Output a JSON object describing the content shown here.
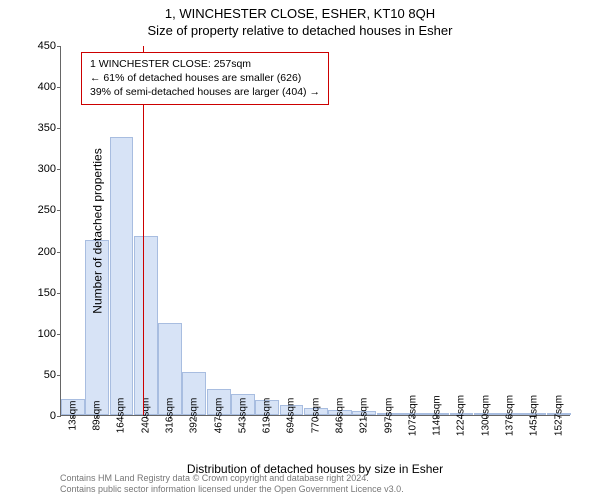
{
  "title_line1": "1, WINCHESTER CLOSE, ESHER, KT10 8QH",
  "title_line2": "Size of property relative to detached houses in Esher",
  "chart": {
    "type": "histogram",
    "y_label": "Number of detached properties",
    "x_label": "Distribution of detached houses by size in Esher",
    "ylim": [
      0,
      450
    ],
    "y_ticks": [
      0,
      50,
      100,
      150,
      200,
      250,
      300,
      350,
      400,
      450
    ],
    "x_ticks": [
      "13sqm",
      "89sqm",
      "164sqm",
      "240sqm",
      "316sqm",
      "392sqm",
      "467sqm",
      "543sqm",
      "619sqm",
      "694sqm",
      "770sqm",
      "846sqm",
      "921sqm",
      "997sqm",
      "1073sqm",
      "1149sqm",
      "1224sqm",
      "1300sqm",
      "1376sqm",
      "1451sqm",
      "1527sqm"
    ],
    "x_min": 13,
    "x_max": 1527,
    "bar_color": "#d7e3f6",
    "bar_border_color": "#a8bde0",
    "background_color": "#ffffff",
    "axis_color": "#666666",
    "bars": [
      {
        "x": 13,
        "count": 20
      },
      {
        "x": 89,
        "count": 213
      },
      {
        "x": 164,
        "count": 338
      },
      {
        "x": 240,
        "count": 218
      },
      {
        "x": 316,
        "count": 112
      },
      {
        "x": 392,
        "count": 52
      },
      {
        "x": 467,
        "count": 32
      },
      {
        "x": 543,
        "count": 25
      },
      {
        "x": 619,
        "count": 18
      },
      {
        "x": 694,
        "count": 12
      },
      {
        "x": 770,
        "count": 8
      },
      {
        "x": 846,
        "count": 6
      },
      {
        "x": 921,
        "count": 5
      },
      {
        "x": 997,
        "count": 3
      },
      {
        "x": 1073,
        "count": 2
      },
      {
        "x": 1149,
        "count": 2
      },
      {
        "x": 1224,
        "count": 2
      },
      {
        "x": 1300,
        "count": 1
      },
      {
        "x": 1376,
        "count": 1
      },
      {
        "x": 1451,
        "count": 1
      },
      {
        "x": 1527,
        "count": 1
      }
    ],
    "reference_value": 257,
    "reference_color": "#cc0000"
  },
  "annotation": {
    "line1": "1 WINCHESTER CLOSE: 257sqm",
    "line2": "← 61% of detached houses are smaller (626)",
    "line3": "39% of semi-detached houses are larger (404) →",
    "border_color": "#cc0000",
    "background_color": "#ffffff",
    "fontsize": 10.5
  },
  "footer": {
    "line1": "Contains HM Land Registry data © Crown copyright and database right 2024.",
    "line2": "Contains public sector information licensed under the Open Government Licence v3.0.",
    "color": "#777777",
    "fontsize": 9
  }
}
